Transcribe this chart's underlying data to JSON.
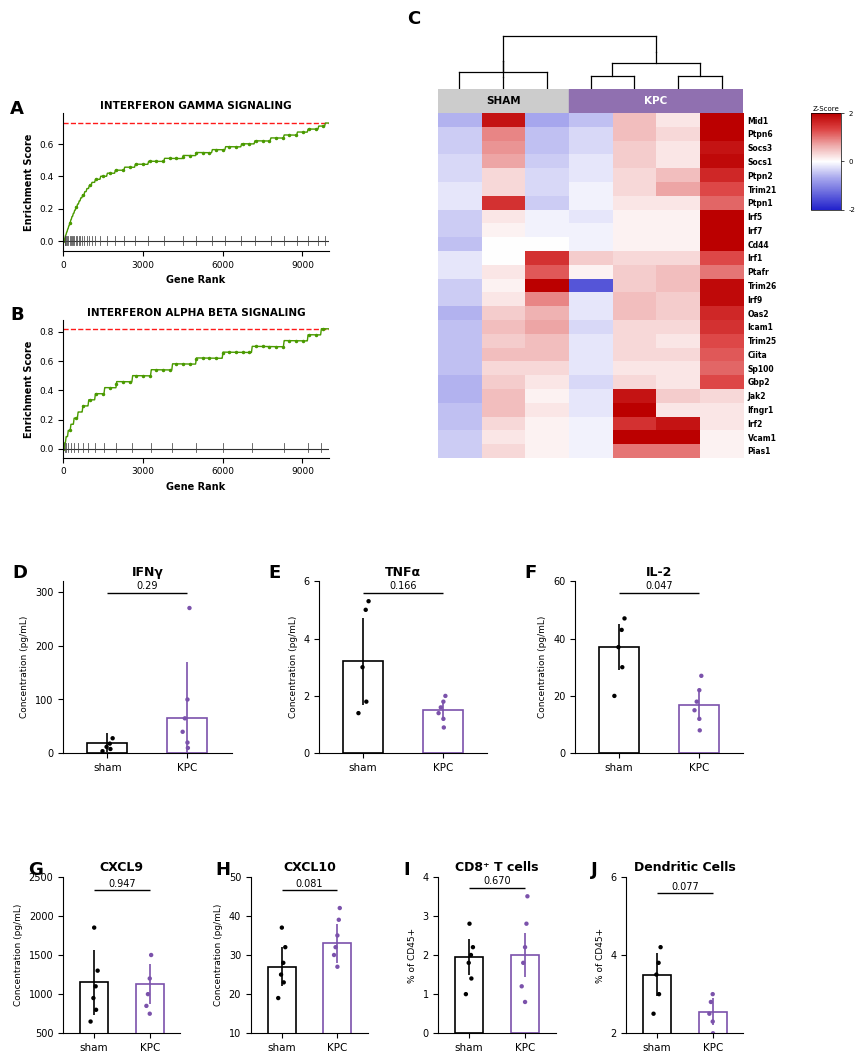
{
  "panel_A": {
    "title": "INTERFERON GAMMA SIGNALING",
    "es_max": 0.73,
    "x_max": 10000,
    "yticks": [
      0.0,
      0.2,
      0.4,
      0.6
    ],
    "xticks": [
      0,
      3000,
      6000,
      9000
    ],
    "gene_positions": [
      50,
      80,
      120,
      160,
      200,
      240,
      280,
      320,
      370,
      420,
      470,
      530,
      590,
      650,
      720,
      800,
      880,
      970,
      1070,
      1200,
      1400,
      1650,
      1950,
      2300,
      2700,
      3200,
      3800,
      4500,
      5000,
      5600,
      6100,
      6700,
      7200,
      7800,
      8300,
      8800,
      9200,
      9600,
      9850
    ]
  },
  "panel_B": {
    "title": "INTERFERON ALPHA BETA SIGNALING",
    "es_max": 0.82,
    "x_max": 10000,
    "yticks": [
      0.0,
      0.2,
      0.4,
      0.6,
      0.8
    ],
    "xticks": [
      0,
      3000,
      6000,
      9000
    ],
    "gene_positions": [
      50,
      100,
      180,
      280,
      400,
      550,
      730,
      950,
      1200,
      1550,
      2000,
      2600,
      3300,
      4100,
      5000,
      6000,
      7100,
      8300,
      9200,
      9700
    ]
  },
  "heatmap_genes": [
    "Mid1",
    "Ptpn6",
    "Socs3",
    "Socs1",
    "Ptpn2",
    "Trim21",
    "Ptpn1",
    "Irf5",
    "Irf7",
    "Cd44",
    "Irf1",
    "Ptafr",
    "Trim26",
    "Irf9",
    "Oas2",
    "Icam1",
    "Trim25",
    "Ciita",
    "Sp100",
    "Gbp2",
    "Jak2",
    "Ifngr1",
    "Irf2",
    "Vcam1",
    "Pias1"
  ],
  "heatmap_data": [
    [
      -0.6,
      1.8,
      -0.7,
      -0.5,
      0.5,
      0.2,
      2.0
    ],
    [
      -0.4,
      0.9,
      -0.5,
      -0.3,
      0.5,
      0.3,
      2.0
    ],
    [
      -0.4,
      0.8,
      -0.5,
      -0.3,
      0.4,
      0.2,
      1.8
    ],
    [
      -0.3,
      0.7,
      -0.4,
      -0.2,
      0.4,
      0.2,
      1.9
    ],
    [
      -0.3,
      0.3,
      -0.3,
      -0.2,
      0.3,
      0.5,
      1.6
    ],
    [
      -0.2,
      0.3,
      -0.3,
      -0.1,
      0.3,
      0.7,
      1.3
    ],
    [
      -0.2,
      1.5,
      -0.4,
      -0.1,
      0.2,
      0.2,
      1.1
    ],
    [
      -0.4,
      0.2,
      -0.1,
      -0.2,
      0.1,
      0.1,
      2.0
    ],
    [
      -0.4,
      0.1,
      -0.1,
      -0.1,
      0.1,
      0.1,
      2.0
    ],
    [
      -0.5,
      0.0,
      -0.0,
      -0.1,
      0.1,
      0.1,
      2.0
    ],
    [
      -0.2,
      0.0,
      1.5,
      0.4,
      0.3,
      0.3,
      1.3
    ],
    [
      -0.2,
      0.2,
      1.2,
      0.1,
      0.4,
      0.5,
      1.0
    ],
    [
      -0.4,
      0.1,
      2.0,
      -1.5,
      0.4,
      0.5,
      1.9
    ],
    [
      -0.4,
      0.2,
      0.9,
      -0.2,
      0.5,
      0.4,
      1.9
    ],
    [
      -0.6,
      0.4,
      0.6,
      -0.2,
      0.5,
      0.4,
      1.6
    ],
    [
      -0.5,
      0.5,
      0.7,
      -0.3,
      0.3,
      0.3,
      1.5
    ],
    [
      -0.5,
      0.4,
      0.5,
      -0.2,
      0.3,
      0.2,
      1.3
    ],
    [
      -0.5,
      0.5,
      0.5,
      -0.2,
      0.3,
      0.3,
      1.2
    ],
    [
      -0.5,
      0.3,
      0.3,
      -0.2,
      0.2,
      0.2,
      1.1
    ],
    [
      -0.6,
      0.4,
      0.2,
      -0.3,
      0.3,
      0.2,
      1.3
    ],
    [
      -0.6,
      0.5,
      0.1,
      -0.2,
      1.8,
      0.4,
      0.3
    ],
    [
      -0.5,
      0.5,
      0.2,
      -0.2,
      2.0,
      0.2,
      0.2
    ],
    [
      -0.5,
      0.3,
      0.1,
      -0.1,
      1.5,
      1.8,
      0.2
    ],
    [
      -0.4,
      0.2,
      0.1,
      -0.1,
      2.0,
      2.0,
      0.1
    ],
    [
      -0.4,
      0.3,
      0.1,
      -0.1,
      1.0,
      1.0,
      0.1
    ]
  ],
  "n_sham": 3,
  "n_kpc": 4,
  "bar_panels": {
    "D": {
      "title": "IFNγ",
      "ylabel": "Concentration (pg/mL)",
      "sham_mean": 20,
      "sham_sem": 18,
      "kpc_mean": 65,
      "kpc_sem": 105,
      "pval": "0.29",
      "ylim": [
        0,
        320
      ],
      "yticks": [
        0,
        100,
        200,
        300
      ],
      "sham_dots": [
        4,
        8,
        12,
        18,
        28
      ],
      "kpc_dots": [
        10,
        20,
        40,
        65,
        100,
        270
      ]
    },
    "E": {
      "title": "TNFα",
      "ylabel": "Concentration (pg/mL)",
      "sham_mean": 3.2,
      "sham_sem": 1.5,
      "kpc_mean": 1.5,
      "kpc_sem": 0.35,
      "pval": "0.166",
      "ylim": [
        0,
        6
      ],
      "yticks": [
        0,
        2,
        4,
        6
      ],
      "sham_dots": [
        1.4,
        1.8,
        3.0,
        5.0,
        5.3
      ],
      "kpc_dots": [
        0.9,
        1.2,
        1.4,
        1.6,
        1.8,
        2.0
      ]
    },
    "F": {
      "title": "IL-2",
      "ylabel": "Concentration (pg/mL)",
      "sham_mean": 37,
      "sham_sem": 8,
      "kpc_mean": 17,
      "kpc_sem": 5,
      "pval": "0.047",
      "ylim": [
        0,
        60
      ],
      "yticks": [
        0,
        20,
        40,
        60
      ],
      "sham_dots": [
        20,
        30,
        37,
        43,
        47
      ],
      "kpc_dots": [
        8,
        12,
        15,
        18,
        22,
        27
      ]
    },
    "G": {
      "title": "CXCL9",
      "ylabel": "Concentration (pg/mL)",
      "sham_mean": 1150,
      "sham_sem": 420,
      "kpc_mean": 1130,
      "kpc_sem": 250,
      "pval": "0.947",
      "ylim": [
        500,
        2500
      ],
      "yticks": [
        500,
        1000,
        1500,
        2000,
        2500
      ],
      "sham_dots": [
        650,
        800,
        950,
        1100,
        1300,
        1850
      ],
      "kpc_dots": [
        750,
        850,
        1000,
        1200,
        1500
      ]
    },
    "H": {
      "title": "CXCL10",
      "ylabel": "Concentration (pg/mL)",
      "sham_mean": 27,
      "sham_sem": 5,
      "kpc_mean": 33,
      "kpc_sem": 5,
      "pval": "0.081",
      "ylim": [
        10,
        50
      ],
      "yticks": [
        10,
        20,
        30,
        40,
        50
      ],
      "sham_dots": [
        19,
        23,
        25,
        28,
        32,
        37
      ],
      "kpc_dots": [
        27,
        30,
        32,
        35,
        39,
        42
      ]
    },
    "I": {
      "title": "CD8⁺ T cells",
      "ylabel": "% of CD45+",
      "sham_mean": 1.95,
      "sham_sem": 0.45,
      "kpc_mean": 2.0,
      "kpc_sem": 0.55,
      "pval": "0.670",
      "ylim": [
        0,
        4
      ],
      "yticks": [
        0,
        1,
        2,
        3,
        4
      ],
      "sham_dots": [
        1.0,
        1.4,
        1.8,
        2.0,
        2.2,
        2.8
      ],
      "kpc_dots": [
        0.8,
        1.2,
        1.8,
        2.2,
        2.8,
        3.5
      ]
    },
    "J": {
      "title": "Dendritic Cells",
      "ylabel": "% of CD45+",
      "sham_mean": 3.5,
      "sham_sem": 0.55,
      "kpc_mean": 2.55,
      "kpc_sem": 0.35,
      "pval": "0.077",
      "ylim": [
        2,
        6
      ],
      "yticks": [
        2,
        4,
        6
      ],
      "sham_dots": [
        2.5,
        3.0,
        3.5,
        3.8,
        4.2
      ],
      "kpc_dots": [
        2.0,
        2.3,
        2.5,
        2.8,
        3.0
      ]
    }
  },
  "sham_color": "#000000",
  "kpc_color": "#7B52AB",
  "kpc_outline_color": "#7B52AB"
}
